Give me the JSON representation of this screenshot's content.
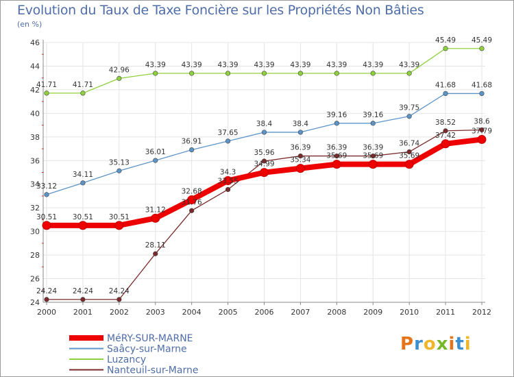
{
  "title": "Evolution du Taux de Taxe Foncière sur les Propriétés Non Bâties",
  "unit_label": "(en %)",
  "logo_text": "Proxiti",
  "logo_colors": [
    "#e5731a",
    "#3c8fd0",
    "#f0b62a",
    "#76b82a",
    "#e5731a",
    "#3c8fd0",
    "#f0b62a"
  ],
  "chart_data": {
    "type": "line",
    "title": "Evolution du Taux de Taxe Foncière sur les Propriétés Non Bâties",
    "ylabel": "(en %)",
    "xlabel": "",
    "ylim": [
      24,
      46
    ],
    "yticks": [
      24,
      26,
      28,
      30,
      32,
      34,
      36,
      38,
      40,
      42,
      44,
      46
    ],
    "categories": [
      "2000",
      "2001",
      "2002",
      "2003",
      "2004",
      "2005",
      "2006",
      "2007",
      "2008",
      "2009",
      "2010",
      "2011",
      "2012"
    ],
    "grid": true,
    "legend": "bottom-left",
    "series": [
      {
        "name": "MéRY-SUR-MARNE",
        "color": "#ee0000",
        "bold": true,
        "values": [
          30.51,
          30.51,
          30.51,
          31.12,
          32.68,
          34.3,
          34.99,
          35.34,
          35.69,
          35.69,
          35.69,
          37.42,
          37.79
        ],
        "labels": [
          "30.51",
          "30.51",
          "30.51",
          "31.12",
          "32.68",
          "34.3",
          "34.99",
          "35.34",
          "35.69",
          "35.69",
          "35.69",
          "37.42",
          "37.79"
        ]
      },
      {
        "name": "Saâcy-sur-Marne",
        "color": "#5c94c8",
        "bold": false,
        "values": [
          33.12,
          34.11,
          35.13,
          36.01,
          36.91,
          37.65,
          38.4,
          38.4,
          39.16,
          39.16,
          39.75,
          41.68,
          41.68
        ],
        "labels": [
          "33.12",
          "34.11",
          "35.13",
          "36.01",
          "36.91",
          "37.65",
          "38.4",
          "38.4",
          "39.16",
          "39.16",
          "39.75",
          "41.68",
          "41.68"
        ]
      },
      {
        "name": "Luzancy",
        "color": "#8fd13d",
        "bold": false,
        "values": [
          41.71,
          41.71,
          42.96,
          43.39,
          43.39,
          43.39,
          43.39,
          43.39,
          43.39,
          43.39,
          43.39,
          45.49,
          45.49
        ],
        "labels": [
          "41.71",
          "41.71",
          "42.96",
          "43.39",
          "43.39",
          "43.39",
          "43.39",
          "43.39",
          "43.39",
          "43.39",
          "43.39",
          "45.49",
          "45.49"
        ]
      },
      {
        "name": "Nanteuil-sur-Marne",
        "color": "#7a2a2a",
        "bold": false,
        "values": [
          24.24,
          24.24,
          24.24,
          28.11,
          31.76,
          33.55,
          35.96,
          36.39,
          36.39,
          36.39,
          36.74,
          38.52,
          38.6
        ],
        "labels": [
          "24.24",
          "24.24",
          "24.24",
          "28.11",
          "31.76",
          "33.55",
          "35.96",
          "36.39",
          "36.39",
          "36.39",
          "36.74",
          "38.52",
          "38.6"
        ]
      }
    ]
  }
}
